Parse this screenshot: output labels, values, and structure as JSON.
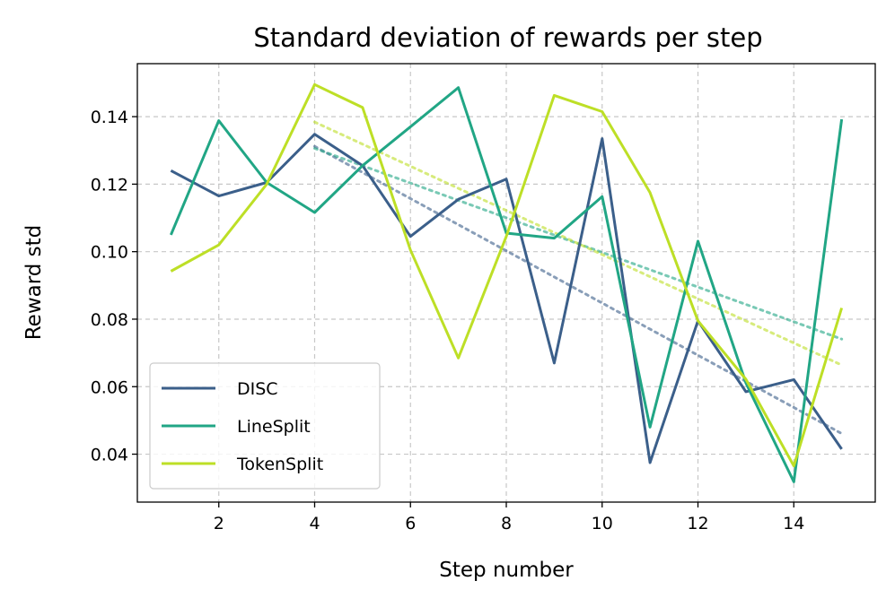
{
  "chart_data": {
    "type": "line",
    "title": "Standard deviation of rewards per step",
    "xlabel": "Step number",
    "ylabel": "Reward std",
    "xlim": [
      0.3,
      15.7
    ],
    "ylim": [
      0.0258,
      0.1557
    ],
    "x_ticks": [
      2,
      4,
      6,
      8,
      10,
      12,
      14
    ],
    "y_ticks": [
      0.04,
      0.06,
      0.08,
      0.1,
      0.12,
      0.14
    ],
    "y_tick_labels": [
      "0.04",
      "0.06",
      "0.08",
      "0.10",
      "0.12",
      "0.14"
    ],
    "grid": true,
    "legend_position": "lower-left",
    "x": [
      1,
      2,
      3,
      4,
      5,
      6,
      7,
      8,
      9,
      10,
      11,
      12,
      13,
      14,
      15
    ],
    "series": [
      {
        "name": "DISC",
        "color": "#3b5f8a",
        "values": [
          0.124,
          0.1165,
          0.1205,
          0.1348,
          0.1255,
          0.1045,
          0.1155,
          0.1215,
          0.067,
          0.1335,
          0.0375,
          0.0795,
          0.0585,
          0.0621,
          0.0415
        ],
        "trend": [
          0.1312,
          0.0461
        ]
      },
      {
        "name": "LineSplit",
        "color": "#21a685",
        "values": [
          0.105,
          0.1388,
          0.1205,
          0.1116,
          0.1255,
          0.137,
          0.1486,
          0.1055,
          0.104,
          0.1163,
          0.048,
          0.1031,
          0.0611,
          0.0318,
          0.1392
        ],
        "trend": [
          0.1306,
          0.0741
        ]
      },
      {
        "name": "TokenSplit",
        "color": "#bddf26",
        "values": [
          0.0942,
          0.102,
          0.12,
          0.1495,
          0.1427,
          0.1005,
          0.0685,
          0.1045,
          0.1463,
          0.1415,
          0.1175,
          0.0795,
          0.0622,
          0.0365,
          0.0833
        ],
        "trend": [
          0.1384,
          0.0664
        ]
      }
    ]
  }
}
